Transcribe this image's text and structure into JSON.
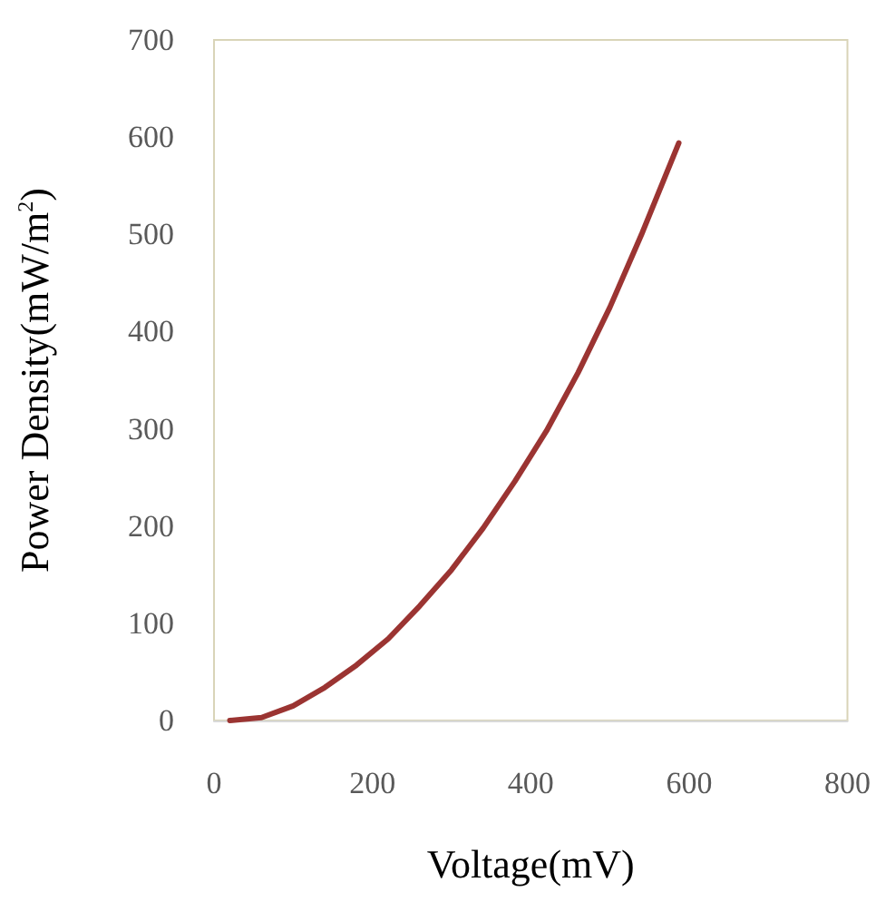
{
  "chart_data": {
    "type": "line",
    "xlabel": "Voltage(mV)",
    "ylabel": "Power Density(mW/m$^{2}$)",
    "x": [
      20,
      60,
      100,
      140,
      180,
      220,
      260,
      300,
      340,
      380,
      420,
      460,
      500,
      540,
      587
    ],
    "series": [
      {
        "color": "#9b3432",
        "values": [
          0,
          3,
          15,
          34,
          57,
          84,
          118,
          155,
          198,
          246,
          298,
          358,
          425,
          500,
          594
        ]
      }
    ],
    "xlim": [
      0,
      800
    ],
    "xticks": [
      0,
      200,
      400,
      600,
      800
    ],
    "ylim": [
      0,
      700
    ],
    "yticks": [
      0,
      100,
      200,
      300,
      400,
      500,
      600,
      700
    ],
    "grid": false,
    "marker": "none",
    "line_style": "solid"
  }
}
